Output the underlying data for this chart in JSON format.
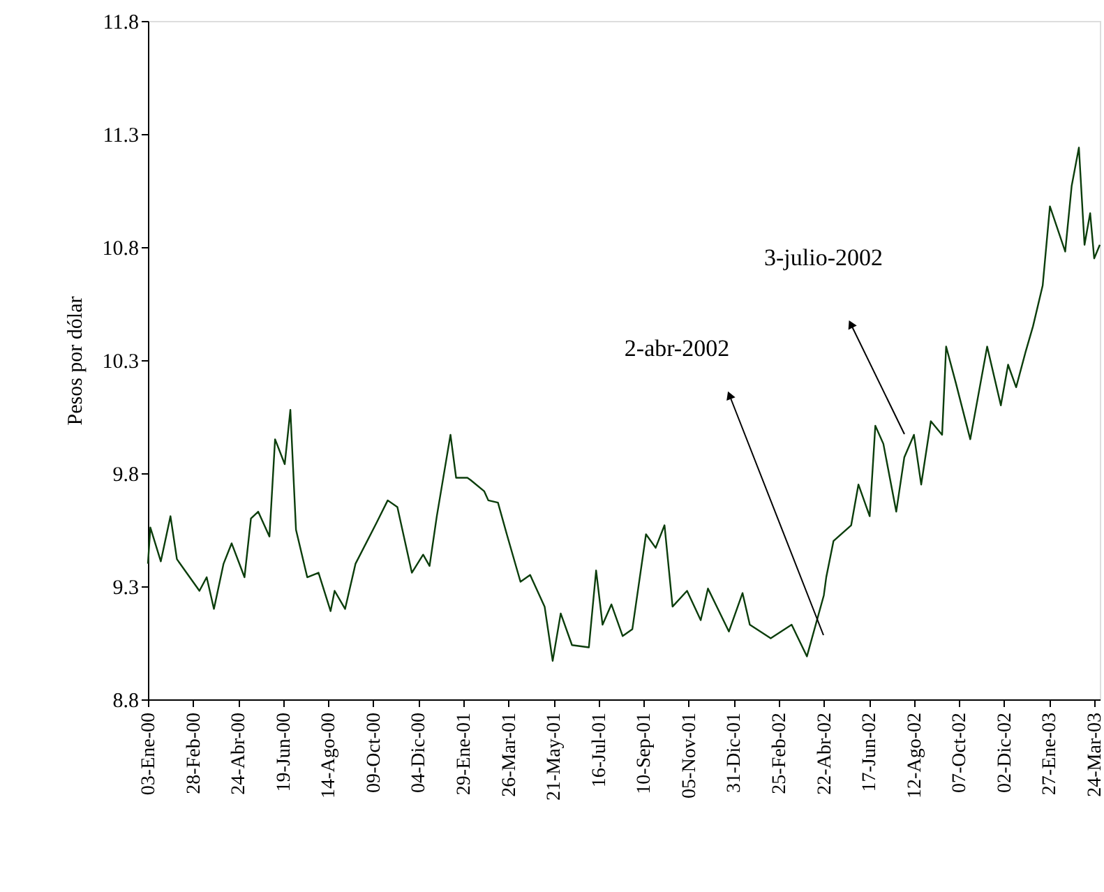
{
  "chart_data": {
    "type": "line",
    "ylabel": "Pesos por dólar",
    "x": [
      "2000-01-03",
      "2000-01-06",
      "2000-01-19",
      "2000-01-31",
      "2000-02-08",
      "2000-03-07",
      "2000-03-16",
      "2000-03-25",
      "2000-04-06",
      "2000-04-16",
      "2000-05-02",
      "2000-05-10",
      "2000-05-19",
      "2000-06-02",
      "2000-06-09",
      "2000-06-21",
      "2000-06-28",
      "2000-07-05",
      "2000-07-19",
      "2000-08-02",
      "2000-08-17",
      "2000-08-22",
      "2000-09-04",
      "2000-09-17",
      "2000-10-13",
      "2000-10-27",
      "2000-11-08",
      "2000-11-26",
      "2000-12-10",
      "2000-12-18",
      "2000-12-27",
      "2001-01-13",
      "2001-01-20",
      "2001-02-03",
      "2001-02-07",
      "2001-02-24",
      "2001-03-01",
      "2001-03-13",
      "2001-03-24",
      "2001-04-10",
      "2001-04-22",
      "2001-05-10",
      "2001-05-20",
      "2001-05-30",
      "2001-06-13",
      "2001-07-04",
      "2001-07-13",
      "2001-07-21",
      "2001-08-01",
      "2001-08-15",
      "2001-08-27",
      "2001-09-13",
      "2001-09-25",
      "2001-10-06",
      "2001-10-16",
      "2001-11-03",
      "2001-11-20",
      "2001-11-29",
      "2001-12-25",
      "2002-01-11",
      "2002-01-20",
      "2002-02-15",
      "2002-03-13",
      "2002-04-01",
      "2002-04-22",
      "2002-04-25",
      "2002-05-04",
      "2002-05-26",
      "2002-06-04",
      "2002-06-18",
      "2002-06-25",
      "2002-07-05",
      "2002-07-21",
      "2002-07-31",
      "2002-08-12",
      "2002-08-21",
      "2002-09-02",
      "2002-09-16",
      "2002-09-21",
      "2002-10-03",
      "2002-10-21",
      "2002-11-11",
      "2002-11-28",
      "2002-12-07",
      "2002-12-17",
      "2002-12-29",
      "2003-01-07",
      "2003-01-19",
      "2003-01-28",
      "2003-02-16",
      "2003-02-24",
      "2003-03-05",
      "2003-03-12",
      "2003-03-19",
      "2003-03-24",
      "2003-03-31"
    ],
    "series": [
      {
        "color": "#0b3d0b",
        "values": [
          9.4,
          9.56,
          9.41,
          9.61,
          9.42,
          9.28,
          9.34,
          9.2,
          9.4,
          9.49,
          9.34,
          9.6,
          9.63,
          9.52,
          9.95,
          9.84,
          10.08,
          9.55,
          9.34,
          9.36,
          9.19,
          9.28,
          9.2,
          9.4,
          9.58,
          9.68,
          9.65,
          9.36,
          9.44,
          9.39,
          9.61,
          9.97,
          9.78,
          9.78,
          9.77,
          9.72,
          9.68,
          9.67,
          9.53,
          9.32,
          9.35,
          9.21,
          8.97,
          9.18,
          9.04,
          9.03,
          9.37,
          9.13,
          9.22,
          9.08,
          9.11,
          9.53,
          9.47,
          9.57,
          9.21,
          9.28,
          9.15,
          9.29,
          9.1,
          9.27,
          9.13,
          9.07,
          9.13,
          8.99,
          9.26,
          9.34,
          9.5,
          9.57,
          9.75,
          9.61,
          10.01,
          9.93,
          9.63,
          9.87,
          9.97,
          9.75,
          10.03,
          9.97,
          10.36,
          10.2,
          9.95,
          10.36,
          10.1,
          10.28,
          10.18,
          10.34,
          10.45,
          10.63,
          10.98,
          10.78,
          11.07,
          11.24,
          10.81,
          10.95,
          10.75,
          10.81
        ]
      }
    ],
    "xlim": [
      "2000-01-03",
      "2003-03-31"
    ],
    "xticks": [
      {
        "value": "2000-01-03",
        "label": "03-Ene-00"
      },
      {
        "value": "2000-02-28",
        "label": "28-Feb-00"
      },
      {
        "value": "2000-04-24",
        "label": "24-Abr-00"
      },
      {
        "value": "2000-06-19",
        "label": "19-Jun-00"
      },
      {
        "value": "2000-08-14",
        "label": "14-Ago-00"
      },
      {
        "value": "2000-10-09",
        "label": "09-Oct-00"
      },
      {
        "value": "2000-12-04",
        "label": "04-Dic-00"
      },
      {
        "value": "2001-01-29",
        "label": "29-Ene-01"
      },
      {
        "value": "2001-03-26",
        "label": "26-Mar-01"
      },
      {
        "value": "2001-05-21",
        "label": "21-May-01"
      },
      {
        "value": "2001-07-16",
        "label": "16-Jul-01"
      },
      {
        "value": "2001-09-10",
        "label": "10-Sep-01"
      },
      {
        "value": "2001-11-05",
        "label": "05-Nov-01"
      },
      {
        "value": "2001-12-31",
        "label": "31-Dic-01"
      },
      {
        "value": "2002-02-25",
        "label": "25-Feb-02"
      },
      {
        "value": "2002-04-22",
        "label": "22-Abr-02"
      },
      {
        "value": "2002-06-17",
        "label": "17-Jun-02"
      },
      {
        "value": "2002-08-12",
        "label": "12-Ago-02"
      },
      {
        "value": "2002-10-07",
        "label": "07-Oct-02"
      },
      {
        "value": "2002-12-02",
        "label": "02-Dic-02"
      },
      {
        "value": "2003-01-27",
        "label": "27-Ene-03"
      },
      {
        "value": "2003-03-24",
        "label": "24-Mar-03"
      }
    ],
    "ylim": [
      8.8,
      11.8
    ],
    "yticks": [
      8.8,
      9.3,
      9.8,
      10.3,
      10.8,
      11.3,
      11.8
    ],
    "grid": false,
    "marker": "none",
    "line_style": "solid",
    "annotations": [
      "2-abr-2002",
      "3-julio-2002"
    ]
  }
}
